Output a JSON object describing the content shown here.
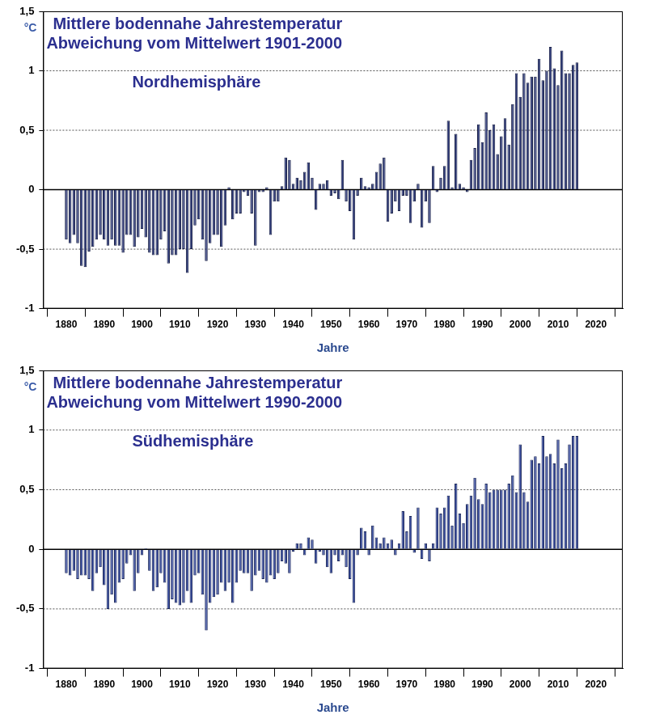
{
  "chart_data": [
    {
      "type": "bar",
      "title": "Mittlere bodennahe Jahrestemperatur",
      "subtitle": "Abweichung vom Mittelwert 1901-2000",
      "annotations": [
        "Nordhemisphäre"
      ],
      "x_label": "Jahre",
      "y_label": "°C",
      "x": [
        1880,
        1881,
        1882,
        1883,
        1884,
        1885,
        1886,
        1887,
        1888,
        1889,
        1890,
        1891,
        1892,
        1893,
        1894,
        1895,
        1896,
        1897,
        1898,
        1899,
        1900,
        1901,
        1902,
        1903,
        1904,
        1905,
        1906,
        1907,
        1908,
        1909,
        1910,
        1911,
        1912,
        1913,
        1914,
        1915,
        1916,
        1917,
        1918,
        1919,
        1920,
        1921,
        1922,
        1923,
        1924,
        1925,
        1926,
        1927,
        1928,
        1929,
        1930,
        1931,
        1932,
        1933,
        1934,
        1935,
        1936,
        1937,
        1938,
        1939,
        1940,
        1941,
        1942,
        1943,
        1944,
        1945,
        1946,
        1947,
        1948,
        1949,
        1950,
        1951,
        1952,
        1953,
        1954,
        1955,
        1956,
        1957,
        1958,
        1959,
        1960,
        1961,
        1962,
        1963,
        1964,
        1965,
        1966,
        1967,
        1968,
        1969,
        1970,
        1971,
        1972,
        1973,
        1974,
        1975,
        1976,
        1977,
        1978,
        1979,
        1980,
        1981,
        1982,
        1983,
        1984,
        1985,
        1986,
        1987,
        1988,
        1989,
        1990,
        1991,
        1992,
        1993,
        1994,
        1995,
        1996,
        1997,
        1998,
        1999,
        2000,
        2001,
        2002,
        2003,
        2004,
        2005,
        2006,
        2007,
        2008,
        2009,
        2010,
        2011,
        2012,
        2013,
        2014,
        2015
      ],
      "values": [
        -0.42,
        -0.45,
        -0.38,
        -0.45,
        -0.64,
        -0.65,
        -0.52,
        -0.48,
        -0.42,
        -0.38,
        -0.42,
        -0.47,
        -0.42,
        -0.47,
        -0.47,
        -0.53,
        -0.38,
        -0.38,
        -0.48,
        -0.4,
        -0.33,
        -0.4,
        -0.53,
        -0.55,
        -0.55,
        -0.42,
        -0.35,
        -0.62,
        -0.55,
        -0.55,
        -0.5,
        -0.5,
        -0.7,
        -0.5,
        -0.3,
        -0.25,
        -0.42,
        -0.6,
        -0.45,
        -0.38,
        -0.38,
        -0.48,
        -0.3,
        0.02,
        -0.25,
        -0.2,
        -0.2,
        -0.02,
        -0.05,
        -0.2,
        -0.47,
        -0.02,
        -0.02,
        0.02,
        -0.38,
        -0.1,
        -0.1,
        0.03,
        0.27,
        0.25,
        0.05,
        0.1,
        0.08,
        0.15,
        0.23,
        0.1,
        -0.17,
        0.05,
        0.05,
        0.08,
        -0.05,
        -0.03,
        -0.08,
        0.25,
        -0.1,
        -0.18,
        -0.42,
        -0.05,
        0.1,
        0.03,
        0.02,
        0.05,
        0.15,
        0.22,
        0.27,
        -0.27,
        -0.2,
        -0.1,
        -0.18,
        -0.05,
        -0.05,
        -0.28,
        -0.1,
        0.05,
        -0.32,
        -0.1,
        -0.28,
        0.2,
        -0.02,
        0.1,
        0.2,
        0.58,
        0.02,
        0.47,
        0.05,
        0.02,
        -0.02,
        0.25,
        0.35,
        0.55,
        0.4,
        0.65,
        0.5,
        0.55,
        0.3,
        0.45,
        0.6,
        0.38,
        0.72,
        0.98,
        0.78,
        0.98,
        0.9,
        0.95,
        0.95,
        1.1,
        0.92,
        1.0,
        1.2,
        1.02,
        0.88,
        1.17,
        0.98,
        0.98,
        1.05,
        1.07
      ],
      "color": "#2e3a78",
      "xlim": [
        1879,
        2022
      ],
      "xticks": [
        1880,
        1890,
        1900,
        1910,
        1920,
        1930,
        1940,
        1950,
        1960,
        1970,
        1980,
        1990,
        2000,
        2010,
        2020
      ],
      "ylim": [
        -1,
        1.5
      ],
      "yticks": [
        -1,
        {
          "value": -0.5,
          "label": "-0,5"
        },
        0,
        {
          "value": 0.5,
          "label": "0,5"
        },
        1,
        {
          "value": 1.5,
          "label": "1,5"
        }
      ],
      "grid": true
    },
    {
      "type": "bar",
      "title": "Mittlere bodennahe Jahrestemperatur",
      "subtitle": "Abweichung vom Mittelwert 1990-2000",
      "annotations": [
        "Südhemisphäre"
      ],
      "x_label": "Jahre",
      "y_label": "°C",
      "x": [
        1880,
        1881,
        1882,
        1883,
        1884,
        1885,
        1886,
        1887,
        1888,
        1889,
        1890,
        1891,
        1892,
        1893,
        1894,
        1895,
        1896,
        1897,
        1898,
        1899,
        1900,
        1901,
        1902,
        1903,
        1904,
        1905,
        1906,
        1907,
        1908,
        1909,
        1910,
        1911,
        1912,
        1913,
        1914,
        1915,
        1916,
        1917,
        1918,
        1919,
        1920,
        1921,
        1922,
        1923,
        1924,
        1925,
        1926,
        1927,
        1928,
        1929,
        1930,
        1931,
        1932,
        1933,
        1934,
        1935,
        1936,
        1937,
        1938,
        1939,
        1940,
        1941,
        1942,
        1943,
        1944,
        1945,
        1946,
        1947,
        1948,
        1949,
        1950,
        1951,
        1952,
        1953,
        1954,
        1955,
        1956,
        1957,
        1958,
        1959,
        1960,
        1961,
        1962,
        1963,
        1964,
        1965,
        1966,
        1967,
        1968,
        1969,
        1970,
        1971,
        1972,
        1973,
        1974,
        1975,
        1976,
        1977,
        1978,
        1979,
        1980,
        1981,
        1982,
        1983,
        1984,
        1985,
        1986,
        1987,
        1988,
        1989,
        1990,
        1991,
        1992,
        1993,
        1994,
        1995,
        1996,
        1997,
        1998,
        1999,
        2000,
        2001,
        2002,
        2003,
        2004,
        2005,
        2006,
        2007,
        2008,
        2009,
        2010,
        2011,
        2012,
        2013,
        2014,
        2015
      ],
      "values": [
        -0.2,
        -0.22,
        -0.18,
        -0.25,
        -0.22,
        -0.22,
        -0.25,
        -0.35,
        -0.2,
        -0.15,
        -0.3,
        -0.5,
        -0.38,
        -0.45,
        -0.28,
        -0.25,
        -0.12,
        -0.05,
        -0.35,
        -0.2,
        -0.05,
        0.01,
        -0.18,
        -0.35,
        -0.32,
        -0.2,
        -0.28,
        -0.5,
        -0.42,
        -0.45,
        -0.47,
        -0.45,
        -0.35,
        -0.45,
        -0.22,
        -0.2,
        -0.38,
        -0.68,
        -0.45,
        -0.4,
        -0.38,
        -0.28,
        -0.35,
        -0.28,
        -0.45,
        -0.28,
        -0.18,
        -0.2,
        -0.2,
        -0.35,
        -0.22,
        -0.18,
        -0.25,
        -0.28,
        -0.22,
        -0.25,
        -0.2,
        -0.1,
        -0.12,
        -0.2,
        -0.02,
        0.05,
        0.05,
        -0.05,
        0.1,
        0.08,
        -0.12,
        -0.02,
        -0.05,
        -0.15,
        -0.2,
        -0.05,
        -0.1,
        -0.05,
        -0.15,
        -0.25,
        -0.45,
        -0.05,
        0.18,
        0.15,
        -0.05,
        0.2,
        0.1,
        0.05,
        0.1,
        0.05,
        0.08,
        -0.05,
        0.05,
        0.32,
        0.15,
        0.28,
        -0.03,
        0.35,
        -0.08,
        0.05,
        -0.1,
        0.05,
        0.35,
        0.3,
        0.35,
        0.45,
        0.2,
        0.55,
        0.3,
        0.22,
        0.38,
        0.45,
        0.6,
        0.42,
        0.38,
        0.55,
        0.48,
        0.5,
        0.5,
        0.5,
        0.5,
        0.55,
        0.62,
        0.48,
        0.88,
        0.48,
        0.4,
        0.75,
        0.78,
        0.72,
        0.95,
        0.78,
        0.8,
        0.72,
        0.92,
        0.68,
        0.72,
        0.88,
        0.95,
        0.95
      ],
      "color": "#34489a",
      "xlim": [
        1879,
        2022
      ],
      "xticks": [
        1880,
        1890,
        1900,
        1910,
        1920,
        1930,
        1940,
        1950,
        1960,
        1970,
        1980,
        1990,
        2000,
        2010,
        2020
      ],
      "ylim": [
        -1,
        1.5
      ],
      "yticks": [
        -1,
        {
          "value": -0.5,
          "label": "-0,5"
        },
        0,
        {
          "value": 0.5,
          "label": "0,5"
        },
        1,
        {
          "value": 1.5,
          "label": "1,5"
        }
      ],
      "grid": true
    }
  ]
}
